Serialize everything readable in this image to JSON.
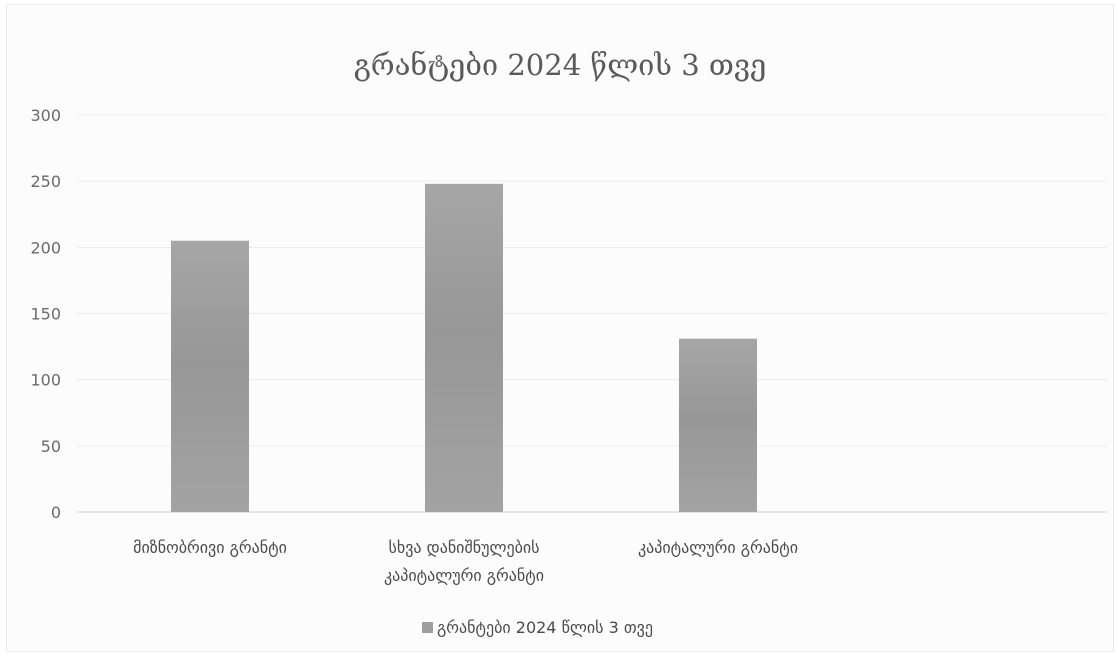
{
  "chart_data": {
    "type": "bar",
    "title": "გრანტები 2024 წლის 3 თვე",
    "categories": [
      [
        "მიზნობრივი გრანტი"
      ],
      [
        "სხვა დანიშნულების",
        "კაპიტალური გრანტი"
      ],
      [
        "კაპიტალური გრანტი"
      ]
    ],
    "series": [
      {
        "name": "გრანტები 2024 წლის 3 თვე",
        "values": [
          205,
          248,
          131
        ],
        "color": "#9e9e9e"
      }
    ],
    "ylim": [
      0,
      300
    ],
    "yticks": [
      0,
      50,
      100,
      150,
      200,
      250,
      300
    ],
    "xlabel": "",
    "ylabel": "",
    "grid": true,
    "legend": "bottom"
  }
}
